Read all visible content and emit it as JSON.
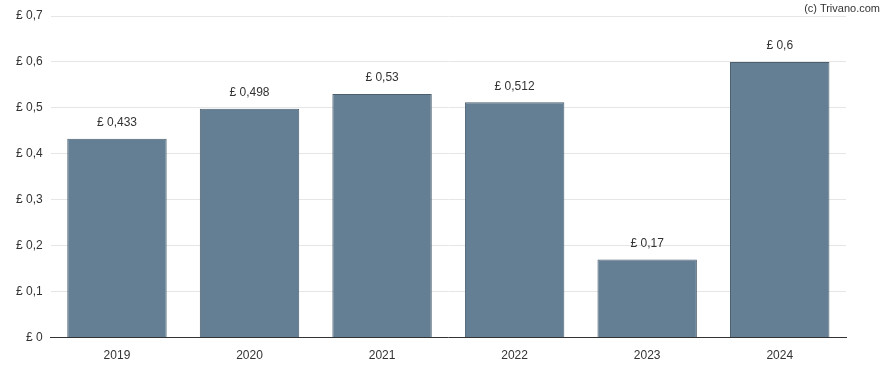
{
  "chart_data": {
    "type": "bar",
    "annotation": "(c) Trivano.com",
    "categories": [
      "2019",
      "2020",
      "2021",
      "2022",
      "2023",
      "2024"
    ],
    "values": [
      0.433,
      0.498,
      0.53,
      0.512,
      0.17,
      0.6
    ],
    "value_labels": [
      "£ 0,433",
      "£ 0,498",
      "£ 0,53",
      "£ 0,512",
      "£ 0,17",
      "£ 0,6"
    ],
    "data_labels": true,
    "color": "#647f94",
    "ylim": [
      0,
      0.7
    ],
    "yticks": [
      {
        "value": 0,
        "label": "£ 0"
      },
      {
        "value": 0.1,
        "label": "£ 0,1"
      },
      {
        "value": 0.2,
        "label": "£ 0,2"
      },
      {
        "value": 0.3,
        "label": "£ 0,3"
      },
      {
        "value": 0.4,
        "label": "£ 0,4"
      },
      {
        "value": 0.5,
        "label": "£ 0,5"
      },
      {
        "value": 0.6,
        "label": "£ 0,6"
      },
      {
        "value": 0.7,
        "label": "£ 0,7"
      }
    ],
    "grid": true
  }
}
